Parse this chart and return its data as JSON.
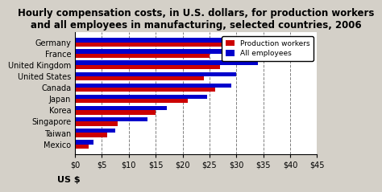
{
  "title": "Hourly compensation costs, in U.S. dollars, for production workers\nand all employees in manufacturing, selected countries, 2006",
  "countries": [
    "Germany",
    "France",
    "United Kingdom",
    "United States",
    "Canada",
    "Japan",
    "Korea",
    "Singapore",
    "Taiwan",
    "Mexico"
  ],
  "production_workers": [
    34.0,
    25.0,
    27.0,
    24.0,
    26.0,
    21.0,
    15.0,
    8.0,
    6.0,
    2.5
  ],
  "all_employees": [
    41.0,
    34.0,
    34.0,
    30.0,
    29.0,
    24.5,
    17.0,
    13.5,
    7.5,
    3.5
  ],
  "color_production": "#cc0000",
  "color_employees": "#0000cc",
  "xlabel": "US $",
  "xlim": [
    0,
    45
  ],
  "xticks": [
    0,
    5,
    10,
    15,
    20,
    25,
    30,
    35,
    40,
    45
  ],
  "xticklabels": [
    "$0",
    "$5",
    "$10",
    "$15",
    "$20",
    "$25",
    "$30",
    "$35",
    "$40",
    "$45"
  ],
  "background_color": "#d4d0c8",
  "plot_bg_color": "#ffffff",
  "title_fontsize": 8.5,
  "legend_labels": [
    "Production workers",
    "All employees"
  ]
}
